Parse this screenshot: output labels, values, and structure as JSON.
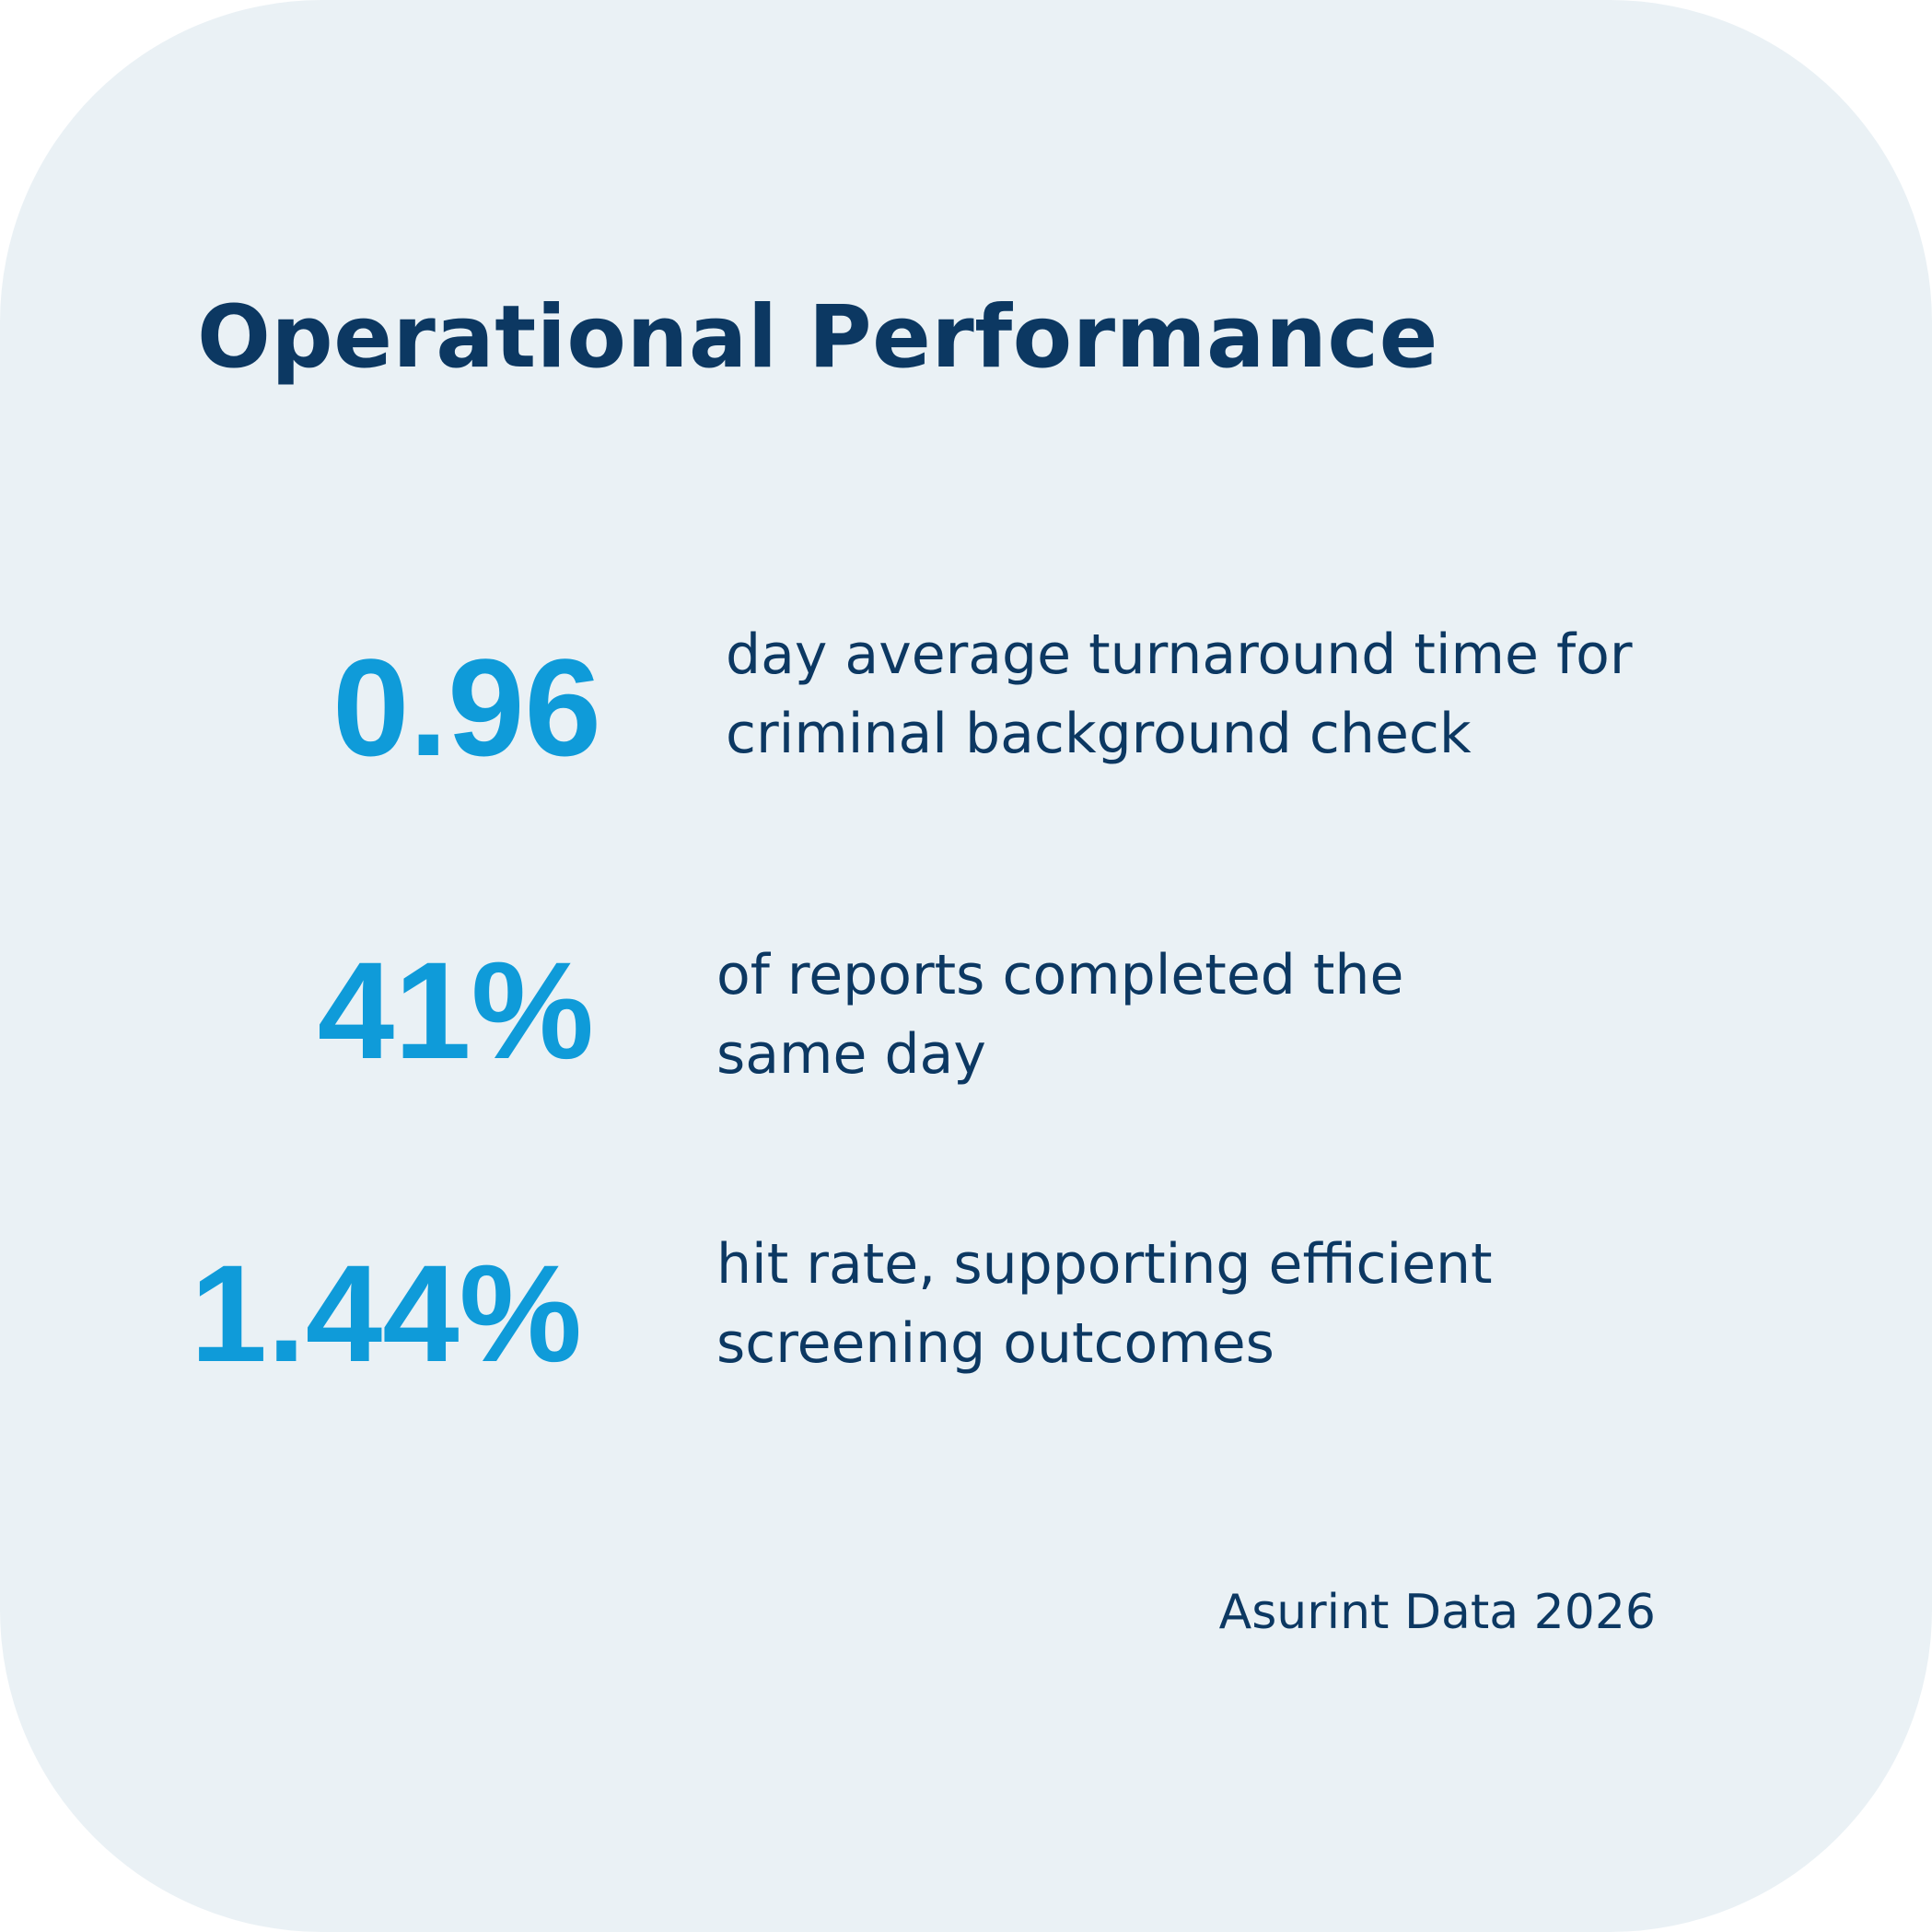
{
  "title": "Operational Performance",
  "stats": [
    {
      "value": "0.96",
      "description_lines": [
        "day average turnaround time for",
        "criminal background check"
      ]
    },
    {
      "value": "41%",
      "description_lines": [
        "of reports completed the",
        "same day"
      ]
    },
    {
      "value": "1.44%",
      "description_lines": [
        "hit rate, supporting efficient",
        "screening outcomes"
      ]
    }
  ],
  "source": "Asurint Data 2026",
  "colors": {
    "background": "#eaf1f5",
    "title": "#0c3862",
    "accent": "#0f9bd9",
    "text": "#0c3862"
  }
}
